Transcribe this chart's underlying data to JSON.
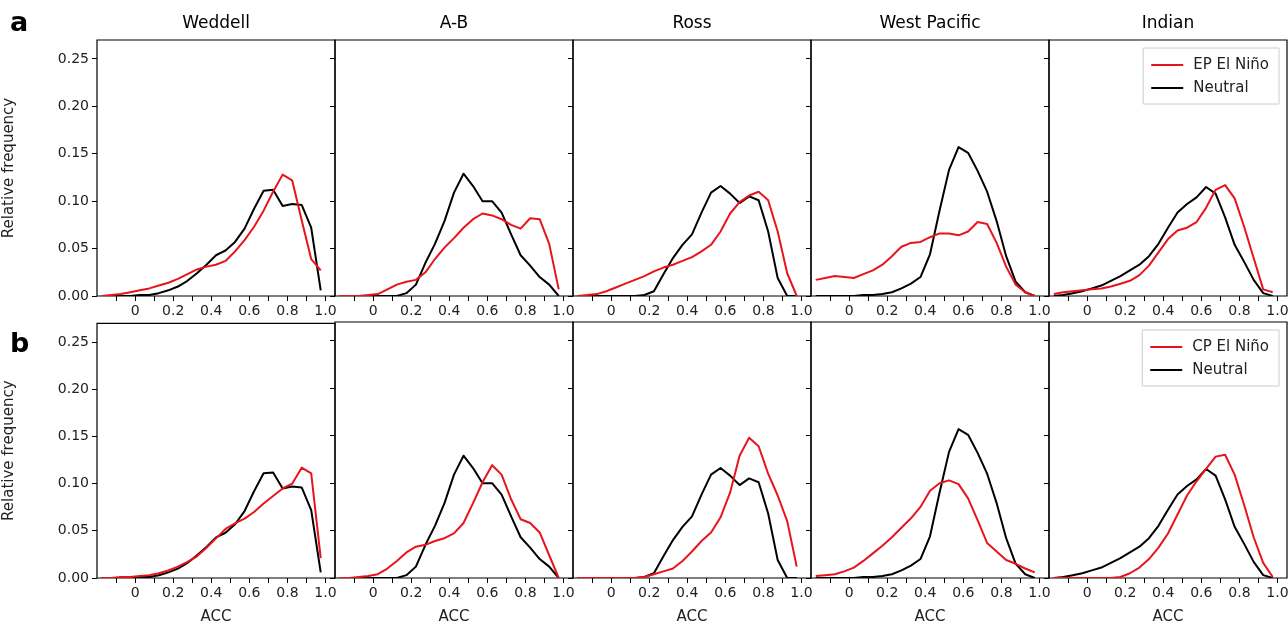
{
  "chart_data": [
    {
      "type": "line",
      "title": "Weddell",
      "ylabel": "Relative frequency",
      "annotations": [
        "a"
      ],
      "legend": false,
      "x": [
        -0.175,
        -0.125,
        -0.075,
        -0.025,
        0.025,
        0.075,
        0.125,
        0.175,
        0.225,
        0.275,
        0.325,
        0.375,
        0.425,
        0.475,
        0.525,
        0.575,
        0.625,
        0.675,
        0.725,
        0.775,
        0.825,
        0.875,
        0.925,
        0.975
      ],
      "xlim": [
        -0.2,
        1.05
      ],
      "xticks": [
        {
          "value": -0.1,
          "label": null
        },
        0,
        {
          "value": 0.1,
          "label": null
        },
        0.2,
        {
          "value": 0.3,
          "label": null
        },
        0.4,
        {
          "value": 0.5,
          "label": null
        },
        0.6,
        {
          "value": 0.7,
          "label": null
        },
        0.8,
        {
          "value": 0.9,
          "label": null
        },
        {
          "value": 1,
          "label": "1.0"
        }
      ],
      "ylim": [
        0,
        0.27
      ],
      "yticks": [
        {
          "value": 0,
          "label": "0.00"
        },
        {
          "value": 0.05,
          "label": "0.05"
        },
        {
          "value": 0.1,
          "label": "0.10"
        },
        {
          "value": 0.15,
          "label": "0.15"
        },
        {
          "value": 0.2,
          "label": "0.20"
        },
        {
          "value": 0.25,
          "label": "0.25"
        }
      ],
      "series": [
        {
          "color": "#e8141c",
          "values": [
            0,
            0.001,
            0.002,
            0.004,
            0.006,
            0.008,
            0.011,
            0.014,
            0.018,
            0.023,
            0.028,
            0.031,
            0.033,
            0.037,
            0.047,
            0.059,
            0.073,
            0.09,
            0.11,
            0.128,
            0.122,
            0.08,
            0.039,
            0.027
          ]
        },
        {
          "color": "#000000",
          "values": [
            0,
            0,
            0,
            0,
            0.001,
            0.001,
            0.003,
            0.006,
            0.01,
            0.016,
            0.024,
            0.033,
            0.043,
            0.048,
            0.057,
            0.071,
            0.092,
            0.111,
            0.112,
            0.095,
            0.097,
            0.096,
            0.072,
            0.006
          ]
        }
      ]
    },
    {
      "type": "line",
      "title": "A-B",
      "legend": false,
      "x": [
        -0.175,
        -0.125,
        -0.075,
        -0.025,
        0.025,
        0.075,
        0.125,
        0.175,
        0.225,
        0.275,
        0.325,
        0.375,
        0.425,
        0.475,
        0.525,
        0.575,
        0.625,
        0.675,
        0.725,
        0.775,
        0.825,
        0.875,
        0.925,
        0.975
      ],
      "xlim": [
        -0.2,
        1.05
      ],
      "xticks": [
        {
          "value": -0.1,
          "label": null
        },
        0,
        {
          "value": 0.1,
          "label": null
        },
        0.2,
        {
          "value": 0.3,
          "label": null
        },
        0.4,
        {
          "value": 0.5,
          "label": null
        },
        0.6,
        {
          "value": 0.7,
          "label": null
        },
        0.8,
        {
          "value": 0.9,
          "label": null
        },
        {
          "value": 1,
          "label": "1.0"
        }
      ],
      "ylim": [
        0,
        0.27
      ],
      "yticks": [
        0,
        0.05,
        0.1,
        0.15,
        0.2,
        0.25
      ],
      "tick_labels": "x",
      "series": [
        {
          "color": "#e8141c",
          "values": [
            0,
            0,
            0,
            0.001,
            0.002,
            0.007,
            0.012,
            0.015,
            0.017,
            0.025,
            0.039,
            0.051,
            0.061,
            0.072,
            0.081,
            0.087,
            0.085,
            0.081,
            0.075,
            0.071,
            0.082,
            0.081,
            0.055,
            0.007
          ]
        },
        {
          "color": "#000000",
          "values": [
            0,
            0,
            0,
            0,
            0,
            0,
            0,
            0.003,
            0.012,
            0.035,
            0.055,
            0.079,
            0.109,
            0.129,
            0.116,
            0.1,
            0.1,
            0.088,
            0.065,
            0.043,
            0.032,
            0.02,
            0.012,
            0
          ]
        }
      ]
    },
    {
      "type": "line",
      "title": "Ross",
      "legend": false,
      "x": [
        -0.175,
        -0.125,
        -0.075,
        -0.025,
        0.025,
        0.075,
        0.125,
        0.175,
        0.225,
        0.275,
        0.325,
        0.375,
        0.425,
        0.475,
        0.525,
        0.575,
        0.625,
        0.675,
        0.725,
        0.775,
        0.825,
        0.875,
        0.925,
        0.975
      ],
      "xlim": [
        -0.2,
        1.05
      ],
      "xticks": [
        {
          "value": -0.1,
          "label": null
        },
        0,
        {
          "value": 0.1,
          "label": null
        },
        0.2,
        {
          "value": 0.3,
          "label": null
        },
        0.4,
        {
          "value": 0.5,
          "label": null
        },
        0.6,
        {
          "value": 0.7,
          "label": null
        },
        0.8,
        {
          "value": 0.9,
          "label": null
        },
        {
          "value": 1,
          "label": "1.0"
        }
      ],
      "ylim": [
        0,
        0.27
      ],
      "yticks": [
        0,
        0.05,
        0.1,
        0.15,
        0.2,
        0.25
      ],
      "tick_labels": "x",
      "series": [
        {
          "color": "#e8141c",
          "values": [
            0,
            0.001,
            0.002,
            0.005,
            0.009,
            0.013,
            0.017,
            0.021,
            0.026,
            0.03,
            0.033,
            0.037,
            0.041,
            0.047,
            0.054,
            0.068,
            0.087,
            0.099,
            0.106,
            0.11,
            0.101,
            0.068,
            0.024,
            0
          ]
        },
        {
          "color": "#000000",
          "values": [
            0,
            0,
            0,
            0,
            0,
            0,
            0,
            0.001,
            0.005,
            0.023,
            0.04,
            0.054,
            0.065,
            0.088,
            0.109,
            0.116,
            0.108,
            0.098,
            0.105,
            0.101,
            0.068,
            0.019,
            0,
            0
          ]
        }
      ]
    },
    {
      "type": "line",
      "title": "West Pacific",
      "legend": false,
      "x": [
        -0.175,
        -0.125,
        -0.075,
        -0.025,
        0.025,
        0.075,
        0.125,
        0.175,
        0.225,
        0.275,
        0.325,
        0.375,
        0.425,
        0.475,
        0.525,
        0.575,
        0.625,
        0.675,
        0.725,
        0.775,
        0.825,
        0.875,
        0.925,
        0.975
      ],
      "xlim": [
        -0.2,
        1.05
      ],
      "xticks": [
        {
          "value": -0.1,
          "label": null
        },
        0,
        {
          "value": 0.1,
          "label": null
        },
        0.2,
        {
          "value": 0.3,
          "label": null
        },
        0.4,
        {
          "value": 0.5,
          "label": null
        },
        0.6,
        {
          "value": 0.7,
          "label": null
        },
        0.8,
        {
          "value": 0.9,
          "label": null
        },
        {
          "value": 1,
          "label": "1.0"
        }
      ],
      "ylim": [
        0,
        0.27
      ],
      "yticks": [
        0,
        0.05,
        0.1,
        0.15,
        0.2,
        0.25
      ],
      "tick_labels": "x",
      "series": [
        {
          "color": "#e8141c",
          "values": [
            0.017,
            0.019,
            0.021,
            0.02,
            0.019,
            0.023,
            0.027,
            0.033,
            0.042,
            0.052,
            0.056,
            0.057,
            0.062,
            0.066,
            0.066,
            0.064,
            0.068,
            0.078,
            0.076,
            0.056,
            0.031,
            0.012,
            0.004,
            0
          ]
        },
        {
          "color": "#000000",
          "values": [
            0,
            0,
            0,
            0,
            0,
            0.001,
            0.001,
            0.002,
            0.004,
            0.008,
            0.013,
            0.02,
            0.044,
            0.09,
            0.133,
            0.157,
            0.151,
            0.132,
            0.11,
            0.079,
            0.042,
            0.015,
            0.004,
            0
          ]
        }
      ]
    },
    {
      "type": "line",
      "title": "Indian",
      "legend": "top right",
      "x": [
        -0.175,
        -0.125,
        -0.075,
        -0.025,
        0.025,
        0.075,
        0.125,
        0.175,
        0.225,
        0.275,
        0.325,
        0.375,
        0.425,
        0.475,
        0.525,
        0.575,
        0.625,
        0.675,
        0.725,
        0.775,
        0.825,
        0.875,
        0.925,
        0.975
      ],
      "xlim": [
        -0.2,
        1.05
      ],
      "xticks": [
        {
          "value": -0.1,
          "label": null
        },
        0,
        {
          "value": 0.1,
          "label": null
        },
        0.2,
        {
          "value": 0.3,
          "label": null
        },
        0.4,
        {
          "value": 0.5,
          "label": null
        },
        0.6,
        {
          "value": 0.7,
          "label": null
        },
        0.8,
        {
          "value": 0.9,
          "label": null
        },
        {
          "value": 1,
          "label": "1.0"
        }
      ],
      "ylim": [
        0,
        0.27
      ],
      "yticks": [
        0,
        0.05,
        0.1,
        0.15,
        0.2,
        0.25
      ],
      "tick_labels": "x",
      "series": [
        {
          "name": "EP El Niño",
          "color": "#e8141c",
          "values": [
            0.002,
            0.004,
            0.005,
            0.006,
            0.007,
            0.008,
            0.01,
            0.013,
            0.016,
            0.022,
            0.032,
            0.046,
            0.06,
            0.069,
            0.072,
            0.078,
            0.093,
            0.112,
            0.117,
            0.103,
            0.073,
            0.04,
            0.007,
            0.004
          ]
        },
        {
          "name": "Neutral",
          "color": "#000000",
          "values": [
            0,
            0.001,
            0.003,
            0.005,
            0.008,
            0.011,
            0.016,
            0.021,
            0.027,
            0.033,
            0.042,
            0.055,
            0.072,
            0.088,
            0.097,
            0.104,
            0.115,
            0.108,
            0.083,
            0.054,
            0.036,
            0.017,
            0.003,
            0
          ]
        }
      ]
    },
    {
      "type": "line",
      "xlabel": "ACC",
      "ylabel": "Relative frequency",
      "annotations": [
        "b"
      ],
      "legend": false,
      "x": [
        -0.175,
        -0.125,
        -0.075,
        -0.025,
        0.025,
        0.075,
        0.125,
        0.175,
        0.225,
        0.275,
        0.325,
        0.375,
        0.425,
        0.475,
        0.525,
        0.575,
        0.625,
        0.675,
        0.725,
        0.775,
        0.825,
        0.875,
        0.925,
        0.975
      ],
      "xlim": [
        -0.2,
        1.05
      ],
      "xticks": [
        {
          "value": -0.1,
          "label": null
        },
        0,
        {
          "value": 0.1,
          "label": null
        },
        0.2,
        {
          "value": 0.3,
          "label": null
        },
        0.4,
        {
          "value": 0.5,
          "label": null
        },
        0.6,
        {
          "value": 0.7,
          "label": null
        },
        0.8,
        {
          "value": 0.9,
          "label": null
        },
        {
          "value": 1,
          "label": "1.0"
        }
      ],
      "ylim": [
        0,
        0.27
      ],
      "yticks": [
        {
          "value": 0,
          "label": "0.00"
        },
        {
          "value": 0.05,
          "label": "0.05"
        },
        {
          "value": 0.1,
          "label": "0.10"
        },
        {
          "value": 0.15,
          "label": "0.15"
        },
        {
          "value": 0.2,
          "label": "0.20"
        },
        {
          "value": 0.25,
          "label": "0.25"
        }
      ],
      "series": [
        {
          "color": "#e8141c",
          "values": [
            0,
            0,
            0.001,
            0.001,
            0.002,
            0.003,
            0.005,
            0.008,
            0.012,
            0.017,
            0.023,
            0.032,
            0.042,
            0.052,
            0.058,
            0.063,
            0.07,
            0.079,
            0.087,
            0.095,
            0.1,
            0.117,
            0.111,
            0.021
          ]
        },
        {
          "color": "#000000",
          "values": [
            0,
            0,
            0,
            0,
            0.001,
            0.001,
            0.003,
            0.006,
            0.01,
            0.016,
            0.024,
            0.033,
            0.043,
            0.048,
            0.057,
            0.071,
            0.092,
            0.111,
            0.112,
            0.095,
            0.097,
            0.096,
            0.072,
            0.006
          ]
        }
      ]
    },
    {
      "type": "line",
      "xlabel": "ACC",
      "legend": false,
      "x": [
        -0.175,
        -0.125,
        -0.075,
        -0.025,
        0.025,
        0.075,
        0.125,
        0.175,
        0.225,
        0.275,
        0.325,
        0.375,
        0.425,
        0.475,
        0.525,
        0.575,
        0.625,
        0.675,
        0.725,
        0.775,
        0.825,
        0.875,
        0.925,
        0.975
      ],
      "xlim": [
        -0.2,
        1.05
      ],
      "xticks": [
        {
          "value": -0.1,
          "label": null
        },
        0,
        {
          "value": 0.1,
          "label": null
        },
        0.2,
        {
          "value": 0.3,
          "label": null
        },
        0.4,
        {
          "value": 0.5,
          "label": null
        },
        0.6,
        {
          "value": 0.7,
          "label": null
        },
        0.8,
        {
          "value": 0.9,
          "label": null
        },
        {
          "value": 1,
          "label": "1.0"
        }
      ],
      "ylim": [
        0,
        0.27
      ],
      "yticks": [
        0,
        0.05,
        0.1,
        0.15,
        0.2,
        0.25
      ],
      "tick_labels": "x",
      "series": [
        {
          "color": "#e8141c",
          "values": [
            0,
            0,
            0.001,
            0.002,
            0.004,
            0.01,
            0.018,
            0.027,
            0.033,
            0.035,
            0.039,
            0.042,
            0.047,
            0.058,
            0.079,
            0.101,
            0.119,
            0.109,
            0.083,
            0.062,
            0.058,
            0.048,
            0.024,
            0
          ]
        },
        {
          "color": "#000000",
          "values": [
            0,
            0,
            0,
            0,
            0,
            0,
            0,
            0.003,
            0.012,
            0.035,
            0.055,
            0.079,
            0.109,
            0.129,
            0.116,
            0.1,
            0.1,
            0.088,
            0.065,
            0.043,
            0.032,
            0.02,
            0.012,
            0
          ]
        }
      ]
    },
    {
      "type": "line",
      "xlabel": "ACC",
      "legend": false,
      "x": [
        -0.175,
        -0.125,
        -0.075,
        -0.025,
        0.025,
        0.075,
        0.125,
        0.175,
        0.225,
        0.275,
        0.325,
        0.375,
        0.425,
        0.475,
        0.525,
        0.575,
        0.625,
        0.675,
        0.725,
        0.775,
        0.825,
        0.875,
        0.925,
        0.975
      ],
      "xlim": [
        -0.2,
        1.05
      ],
      "xticks": [
        {
          "value": -0.1,
          "label": null
        },
        0,
        {
          "value": 0.1,
          "label": null
        },
        0.2,
        {
          "value": 0.3,
          "label": null
        },
        0.4,
        {
          "value": 0.5,
          "label": null
        },
        0.6,
        {
          "value": 0.7,
          "label": null
        },
        0.8,
        {
          "value": 0.9,
          "label": null
        },
        {
          "value": 1,
          "label": "1.0"
        }
      ],
      "ylim": [
        0,
        0.27
      ],
      "yticks": [
        0,
        0.05,
        0.1,
        0.15,
        0.2,
        0.25
      ],
      "tick_labels": "x",
      "series": [
        {
          "color": "#e8141c",
          "values": [
            0,
            0,
            0,
            0,
            0,
            0,
            0,
            0.001,
            0.004,
            0.007,
            0.01,
            0.018,
            0.028,
            0.039,
            0.048,
            0.064,
            0.09,
            0.129,
            0.148,
            0.139,
            0.11,
            0.087,
            0.06,
            0.012
          ]
        },
        {
          "color": "#000000",
          "values": [
            0,
            0,
            0,
            0,
            0,
            0,
            0,
            0.001,
            0.005,
            0.023,
            0.04,
            0.054,
            0.065,
            0.088,
            0.109,
            0.116,
            0.108,
            0.098,
            0.105,
            0.101,
            0.068,
            0.019,
            0,
            0
          ]
        }
      ]
    },
    {
      "type": "line",
      "xlabel": "ACC",
      "legend": false,
      "x": [
        -0.175,
        -0.125,
        -0.075,
        -0.025,
        0.025,
        0.075,
        0.125,
        0.175,
        0.225,
        0.275,
        0.325,
        0.375,
        0.425,
        0.475,
        0.525,
        0.575,
        0.625,
        0.675,
        0.725,
        0.775,
        0.825,
        0.875,
        0.925,
        0.975
      ],
      "xlim": [
        -0.2,
        1.05
      ],
      "xticks": [
        {
          "value": -0.1,
          "label": null
        },
        0,
        {
          "value": 0.1,
          "label": null
        },
        0.2,
        {
          "value": 0.3,
          "label": null
        },
        0.4,
        {
          "value": 0.5,
          "label": null
        },
        0.6,
        {
          "value": 0.7,
          "label": null
        },
        0.8,
        {
          "value": 0.9,
          "label": null
        },
        {
          "value": 1,
          "label": "1.0"
        }
      ],
      "ylim": [
        0,
        0.27
      ],
      "yticks": [
        0,
        0.05,
        0.1,
        0.15,
        0.2,
        0.25
      ],
      "tick_labels": "x",
      "series": [
        {
          "color": "#e8141c",
          "values": [
            0.002,
            0.003,
            0.004,
            0.007,
            0.011,
            0.018,
            0.026,
            0.034,
            0.043,
            0.053,
            0.063,
            0.075,
            0.092,
            0.1,
            0.103,
            0.099,
            0.084,
            0.061,
            0.037,
            0.028,
            0.019,
            0.015,
            0.01,
            0.006
          ]
        },
        {
          "color": "#000000",
          "values": [
            0,
            0,
            0,
            0,
            0,
            0.001,
            0.001,
            0.002,
            0.004,
            0.008,
            0.013,
            0.02,
            0.044,
            0.09,
            0.133,
            0.157,
            0.151,
            0.132,
            0.11,
            0.079,
            0.042,
            0.015,
            0.004,
            0
          ]
        }
      ]
    },
    {
      "type": "line",
      "xlabel": "ACC",
      "legend": "top right",
      "x": [
        -0.175,
        -0.125,
        -0.075,
        -0.025,
        0.025,
        0.075,
        0.125,
        0.175,
        0.225,
        0.275,
        0.325,
        0.375,
        0.425,
        0.475,
        0.525,
        0.575,
        0.625,
        0.675,
        0.725,
        0.775,
        0.825,
        0.875,
        0.925,
        0.975
      ],
      "xlim": [
        -0.2,
        1.05
      ],
      "xticks": [
        {
          "value": -0.1,
          "label": null
        },
        0,
        {
          "value": 0.1,
          "label": null
        },
        0.2,
        {
          "value": 0.3,
          "label": null
        },
        0.4,
        {
          "value": 0.5,
          "label": null
        },
        0.6,
        {
          "value": 0.7,
          "label": null
        },
        0.8,
        {
          "value": 0.9,
          "label": null
        },
        {
          "value": 1,
          "label": "1.0"
        }
      ],
      "ylim": [
        0,
        0.27
      ],
      "yticks": [
        0,
        0.05,
        0.1,
        0.15,
        0.2,
        0.25
      ],
      "tick_labels": "x",
      "series": [
        {
          "name": "CP El Niño",
          "color": "#e8141c",
          "values": [
            0,
            0,
            0,
            0,
            0,
            0,
            0,
            0.001,
            0.005,
            0.011,
            0.02,
            0.032,
            0.047,
            0.067,
            0.087,
            0.102,
            0.115,
            0.128,
            0.13,
            0.109,
            0.077,
            0.043,
            0.016,
            0.001
          ]
        },
        {
          "name": "Neutral",
          "color": "#000000",
          "values": [
            0,
            0.001,
            0.003,
            0.005,
            0.008,
            0.011,
            0.016,
            0.021,
            0.027,
            0.033,
            0.042,
            0.055,
            0.072,
            0.088,
            0.097,
            0.104,
            0.115,
            0.108,
            0.083,
            0.054,
            0.036,
            0.017,
            0.003,
            0
          ]
        }
      ]
    }
  ]
}
